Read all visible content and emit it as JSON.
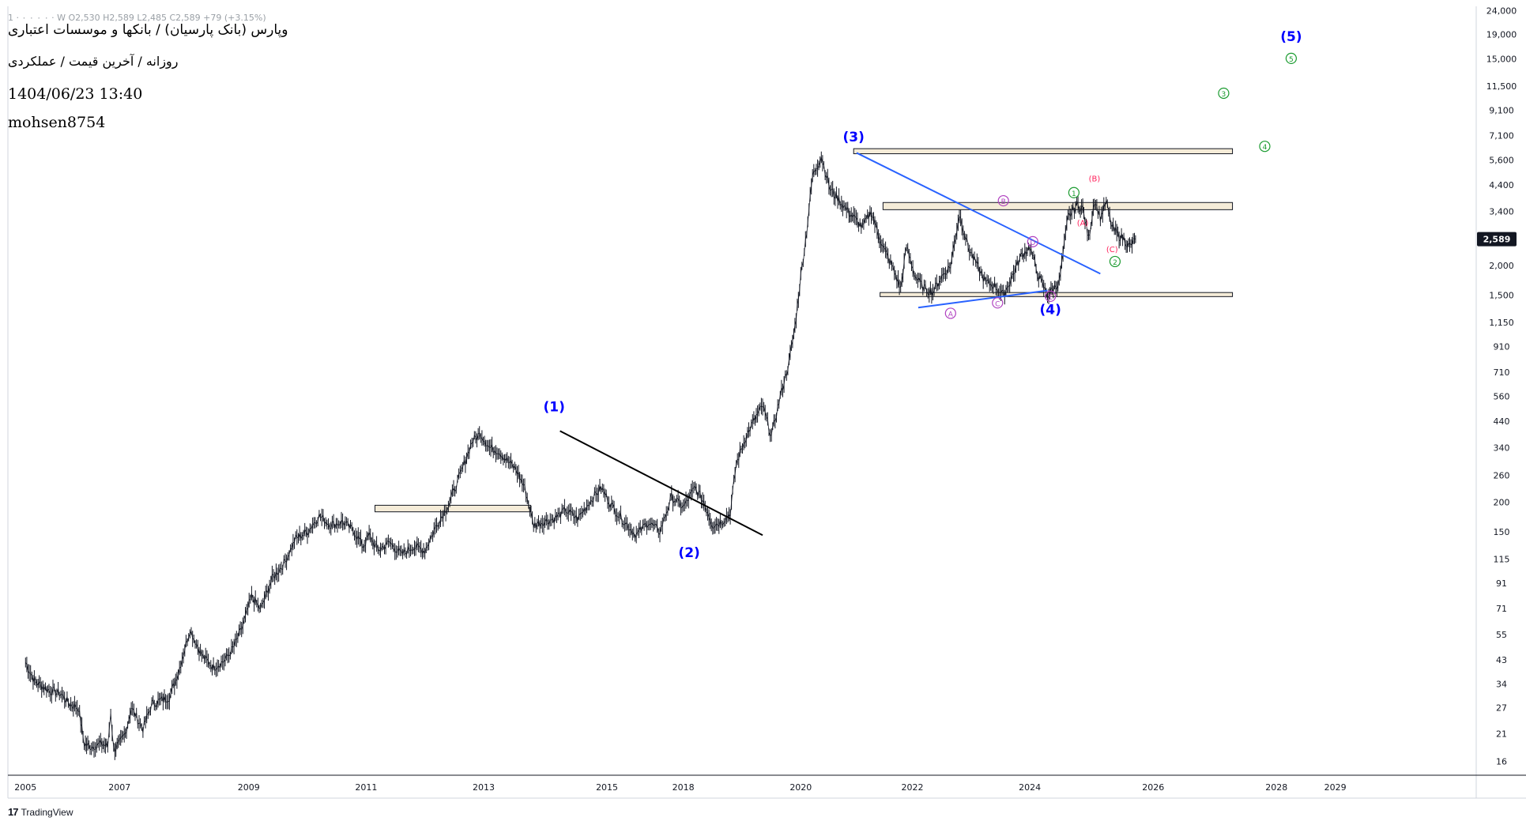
{
  "header": {
    "ohlc_line": "1 · ۰ ۰ ۰ ۰ · W  O2,530  H2,589  L2,485  C2,589  +79 (+3.15%)",
    "title": "وپارس (بانک پارسیان) / بانکها و موسسات اعتباری",
    "subtitle": "روزانه / آخرین قیمت / عملکردی",
    "datetime": "1404/06/23 13:40",
    "author": "mohsen8754"
  },
  "footer": {
    "logo_text": "TradingView",
    "logo_mark": "17"
  },
  "colors": {
    "price": "#131722",
    "wave_main": "#0000ff",
    "wave_green": "#1a9b2f",
    "wave_pink": "#ff1f5a",
    "wave_purple": "#b040c0",
    "trend_blue": "#2962ff",
    "trend_black": "#000000",
    "zone_fill": "#f5ecd8",
    "last_price_bg": "#131722",
    "axis_text": "#131722"
  },
  "chart_data": {
    "type": "line",
    "title": "",
    "xlabel": "",
    "ylabel": "",
    "y_scale": "log",
    "ylim": [
      14,
      25000
    ],
    "xlim": [
      2004.7,
      2029.7
    ],
    "x_ticks": [
      {
        "label": "2005",
        "x": 2005.0
      },
      {
        "label": "2007",
        "x": 2006.6
      },
      {
        "label": "2009",
        "x": 2008.8
      },
      {
        "label": "2011",
        "x": 2010.8
      },
      {
        "label": "2013",
        "x": 2012.8
      },
      {
        "label": "2015",
        "x": 2014.9
      },
      {
        "label": "2018",
        "x": 2016.2
      },
      {
        "label": "2020",
        "x": 2018.2
      },
      {
        "label": "2022",
        "x": 2020.1
      },
      {
        "label": "2024",
        "x": 2022.1
      },
      {
        "label": "2026",
        "x": 2024.2
      },
      {
        "label": "2028",
        "x": 2026.3
      },
      {
        "label": "2029",
        "x": 2027.3
      }
    ],
    "y_ticks": [
      24000,
      19000,
      15000,
      11500,
      9100,
      7100,
      5600,
      4400,
      3400,
      2000,
      1500,
      1150,
      910,
      710,
      560,
      440,
      340,
      260,
      200,
      150,
      115,
      91,
      71,
      55,
      43,
      34,
      27,
      21,
      16
    ],
    "last_price": {
      "value": 2589,
      "label": "2,589"
    },
    "series": [
      {
        "x": [
          2005.0,
          2005.15,
          2005.4,
          2005.6,
          2005.75,
          2005.9,
          2006.0,
          2006.1,
          2006.3,
          2006.4,
          2006.45,
          2006.5,
          2006.6,
          2006.7,
          2006.8,
          2007.0,
          2007.15,
          2007.3,
          2007.45,
          2007.6,
          2007.8,
          2008.0,
          2008.2,
          2008.4,
          2008.55,
          2008.7,
          2008.85,
          2009.0,
          2009.2,
          2009.4,
          2009.6,
          2009.8,
          2010.0,
          2010.2,
          2010.4,
          2010.6,
          2010.75,
          2010.85,
          2011.0,
          2011.2,
          2011.4,
          2011.6,
          2011.8,
          2012.0,
          2012.2,
          2012.4,
          2012.6,
          2012.75,
          2012.9,
          2013.05,
          2013.2,
          2013.35,
          2013.5,
          2013.65,
          2013.8,
          2014.0,
          2014.2,
          2014.4,
          2014.6,
          2014.8,
          2015.0,
          2015.2,
          2015.4,
          2015.6,
          2015.8,
          2016.0,
          2016.2,
          2016.4,
          2016.55,
          2016.7,
          2016.85,
          2017.0,
          2017.1,
          2017.25,
          2017.4,
          2017.55,
          2017.7,
          2017.85,
          2018.0,
          2018.1,
          2018.2,
          2018.3,
          2018.4,
          2018.55,
          2018.7,
          2018.85,
          2019.0,
          2019.1,
          2019.25,
          2019.4,
          2019.5,
          2019.6,
          2019.75,
          2019.9,
          2020.0,
          2020.15,
          2020.3,
          2020.45,
          2020.6,
          2020.75,
          2020.9,
          2021.05,
          2021.2,
          2021.35,
          2021.5,
          2021.65,
          2021.8,
          2021.95,
          2022.1,
          2022.25,
          2022.4,
          2022.5,
          2022.6,
          2022.75,
          2022.9,
          2023.0,
          2023.1,
          2023.2,
          2023.3,
          2023.4,
          2023.5,
          2023.6,
          2023.7,
          2023.8,
          2023.9
        ],
        "values": [
          42,
          35,
          32,
          31,
          28,
          27,
          19,
          18.5,
          19,
          18.5,
          26,
          18,
          19,
          21,
          27,
          22,
          28,
          29,
          30,
          38,
          58,
          45,
          40,
          43,
          49,
          60,
          80,
          70,
          95,
          110,
          140,
          150,
          175,
          160,
          165,
          150,
          130,
          145,
          125,
          135,
          120,
          130,
          125,
          160,
          195,
          260,
          360,
          390,
          340,
          330,
          300,
          275,
          230,
          160,
          165,
          170,
          185,
          170,
          200,
          230,
          190,
          165,
          145,
          165,
          150,
          210,
          190,
          230,
          200,
          160,
          165,
          180,
          290,
          370,
          440,
          510,
          380,
          560,
          780,
          1100,
          1800,
          2800,
          4800,
          5800,
          4200,
          3800,
          3400,
          3200,
          2900,
          3400,
          2800,
          2400,
          2000,
          1600,
          2400,
          1800,
          1600,
          1550,
          1800,
          2000,
          3300,
          2400,
          2000,
          1700,
          1650,
          1500,
          1800,
          2200,
          2400,
          1800,
          1500,
          1600,
          1700,
          3200,
          3600,
          3500,
          2600,
          3800,
          3200,
          3700,
          2900,
          2700,
          2600,
          2400,
          2589
        ]
      }
    ],
    "zones": [
      {
        "x0": 2010.95,
        "x1": 2013.6,
        "y0": 182,
        "y1": 194
      },
      {
        "x0": 2019.1,
        "x1": 2025.55,
        "y0": 5950,
        "y1": 6250
      },
      {
        "x0": 2019.6,
        "x1": 2025.55,
        "y0": 3450,
        "y1": 3700
      },
      {
        "x0": 2019.55,
        "x1": 2025.55,
        "y0": 1480,
        "y1": 1540
      }
    ],
    "trendlines": [
      {
        "color": "black",
        "x0": 2014.1,
        "y0": 400,
        "x1": 2017.55,
        "y1": 145
      },
      {
        "color": "blue",
        "x0": 2019.15,
        "y0": 6000,
        "x1": 2023.3,
        "y1": 1850
      },
      {
        "color": "blue",
        "x0": 2020.2,
        "y0": 1330,
        "x1": 2022.4,
        "y1": 1570
      }
    ],
    "annotations": [
      {
        "text": "(1)",
        "x": 2014.0,
        "y": 485,
        "style": "main"
      },
      {
        "text": "(2)",
        "x": 2016.3,
        "y": 117,
        "style": "main"
      },
      {
        "text": "(3)",
        "x": 2019.1,
        "y": 6700,
        "style": "main"
      },
      {
        "text": "(4)",
        "x": 2022.45,
        "y": 1250,
        "style": "main"
      },
      {
        "text": "(5)",
        "x": 2026.55,
        "y": 17800,
        "style": "main"
      },
      {
        "text": "1",
        "x": 2022.85,
        "y": 3950,
        "style": "green"
      },
      {
        "text": "2",
        "x": 2023.55,
        "y": 2020,
        "style": "green"
      },
      {
        "text": "3",
        "x": 2025.4,
        "y": 10400,
        "style": "green"
      },
      {
        "text": "4",
        "x": 2026.1,
        "y": 6200,
        "style": "green"
      },
      {
        "text": "5",
        "x": 2026.55,
        "y": 14600,
        "style": "green"
      },
      {
        "text": "(A)",
        "x": 2023.0,
        "y": 2950,
        "style": "pink"
      },
      {
        "text": "(B)",
        "x": 2023.2,
        "y": 4550,
        "style": "pink"
      },
      {
        "text": "(C)",
        "x": 2023.5,
        "y": 2280,
        "style": "pink"
      },
      {
        "text": "A",
        "x": 2020.75,
        "y": 1220,
        "style": "purple"
      },
      {
        "text": "B",
        "x": 2021.65,
        "y": 3650,
        "style": "purple"
      },
      {
        "text": "C",
        "x": 2021.55,
        "y": 1350,
        "style": "purple"
      },
      {
        "text": "D",
        "x": 2022.15,
        "y": 2450,
        "style": "purple"
      },
      {
        "text": "E",
        "x": 2022.45,
        "y": 1440,
        "style": "purple"
      }
    ]
  }
}
